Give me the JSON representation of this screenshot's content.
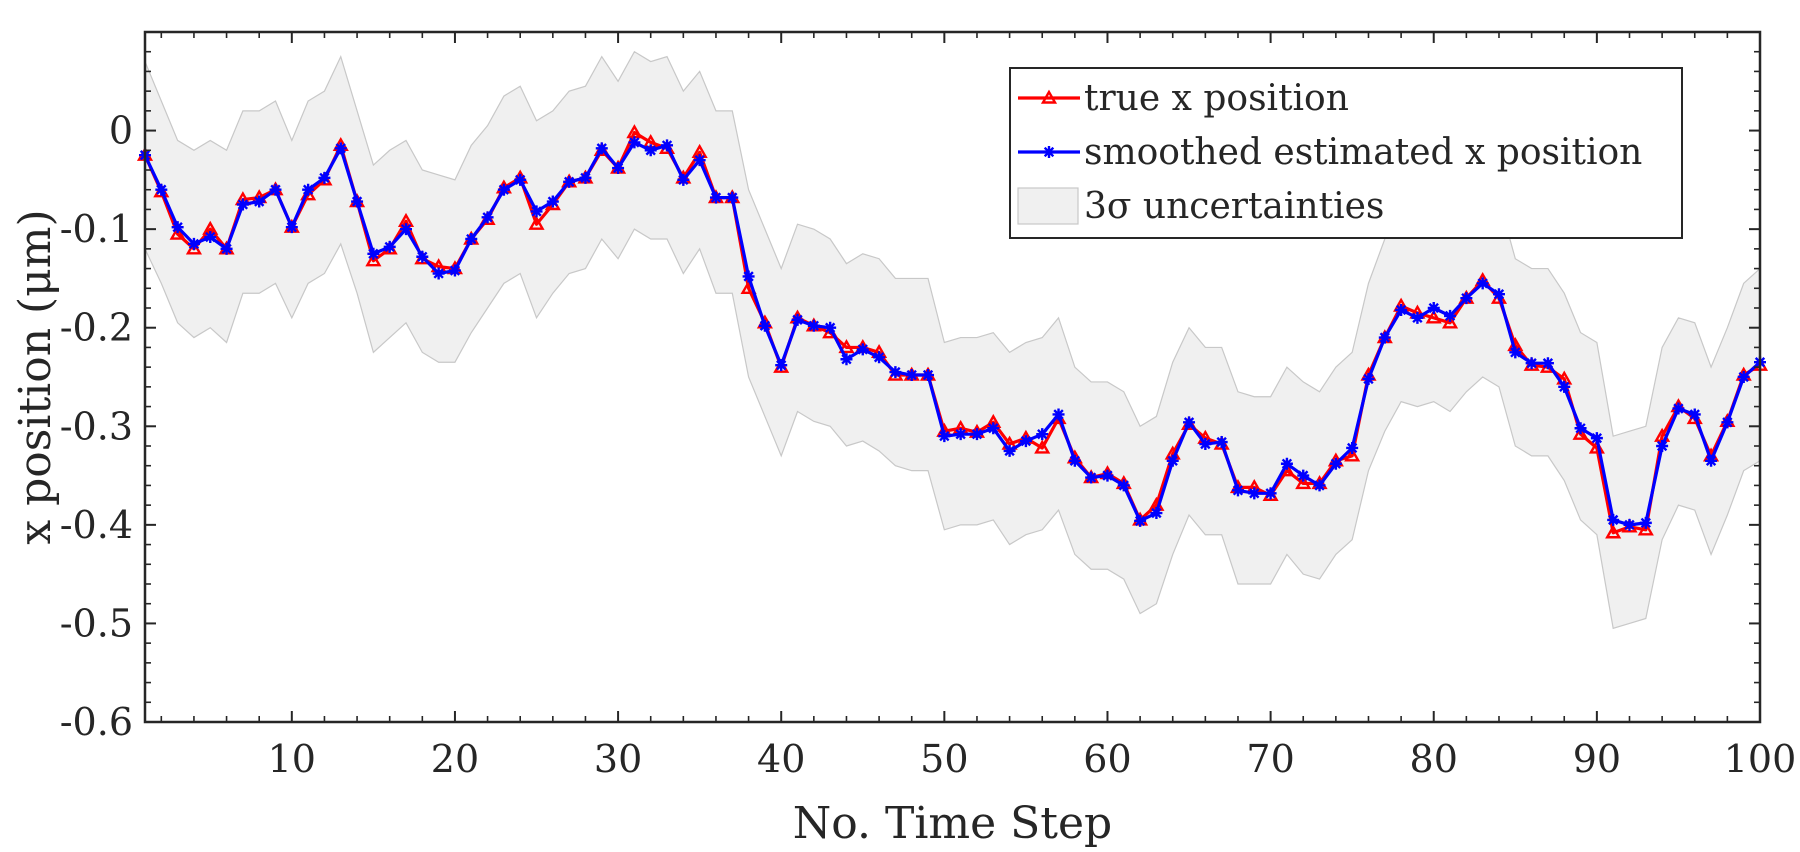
{
  "chart_data": {
    "type": "line",
    "xlabel": "No. Time Step",
    "ylabel": "x position (μm)",
    "xlim": [
      1,
      100
    ],
    "ylim": [
      -0.6,
      0.1
    ],
    "xticks": [
      10,
      20,
      30,
      40,
      50,
      60,
      70,
      80,
      90,
      100
    ],
    "xtick_labels": [
      "10",
      "20",
      "30",
      "40",
      "50",
      "60",
      "70",
      "80",
      "90",
      "100"
    ],
    "yticks": [
      -0.6,
      -0.5,
      -0.4,
      -0.3,
      -0.2,
      -0.1,
      0
    ],
    "ytick_labels": [
      "-0.6",
      "-0.5",
      "-0.4",
      "-0.3",
      "-0.2",
      "-0.1",
      "0"
    ],
    "legend_position": "top-right",
    "legend": [
      "true x position",
      "smoothed estimated x position",
      "3σ uncertainties"
    ],
    "colors": {
      "true": "#ff0000",
      "smoothed": "#0000ff",
      "band_fill": "#f0f0f0",
      "band_edge": "#c8c8c8",
      "axis": "#262626"
    },
    "series": [
      {
        "name": "true x position",
        "marker": "triangle",
        "values": [
          -0.025,
          -0.062,
          -0.105,
          -0.12,
          -0.1,
          -0.12,
          -0.07,
          -0.068,
          -0.06,
          -0.098,
          -0.065,
          -0.05,
          -0.015,
          -0.072,
          -0.132,
          -0.12,
          -0.092,
          -0.13,
          -0.138,
          -0.14,
          -0.11,
          -0.09,
          -0.058,
          -0.048,
          -0.095,
          -0.075,
          -0.052,
          -0.048,
          -0.02,
          -0.038,
          -0.002,
          -0.012,
          -0.018,
          -0.048,
          -0.022,
          -0.068,
          -0.068,
          -0.16,
          -0.195,
          -0.24,
          -0.19,
          -0.198,
          -0.205,
          -0.22,
          -0.22,
          -0.225,
          -0.248,
          -0.248,
          -0.248,
          -0.305,
          -0.302,
          -0.306,
          -0.296,
          -0.318,
          -0.312,
          -0.322,
          -0.292,
          -0.332,
          -0.352,
          -0.348,
          -0.358,
          -0.395,
          -0.38,
          -0.328,
          -0.298,
          -0.312,
          -0.318,
          -0.362,
          -0.362,
          -0.37,
          -0.345,
          -0.358,
          -0.358,
          -0.335,
          -0.33,
          -0.248,
          -0.21,
          -0.178,
          -0.185,
          -0.19,
          -0.195,
          -0.17,
          -0.152,
          -0.17,
          -0.218,
          -0.238,
          -0.24,
          -0.252,
          -0.308,
          -0.322,
          -0.408,
          -0.402,
          -0.405,
          -0.31,
          -0.28,
          -0.292,
          -0.33,
          -0.295,
          -0.248,
          -0.238
        ]
      },
      {
        "name": "smoothed estimated x position",
        "marker": "star",
        "values": [
          -0.025,
          -0.06,
          -0.098,
          -0.115,
          -0.108,
          -0.12,
          -0.075,
          -0.072,
          -0.06,
          -0.098,
          -0.06,
          -0.048,
          -0.018,
          -0.072,
          -0.125,
          -0.118,
          -0.1,
          -0.128,
          -0.145,
          -0.142,
          -0.11,
          -0.088,
          -0.06,
          -0.05,
          -0.082,
          -0.072,
          -0.052,
          -0.048,
          -0.018,
          -0.038,
          -0.012,
          -0.02,
          -0.015,
          -0.05,
          -0.03,
          -0.068,
          -0.068,
          -0.148,
          -0.198,
          -0.238,
          -0.192,
          -0.198,
          -0.2,
          -0.232,
          -0.222,
          -0.23,
          -0.245,
          -0.248,
          -0.248,
          -0.31,
          -0.308,
          -0.308,
          -0.302,
          -0.325,
          -0.315,
          -0.308,
          -0.288,
          -0.335,
          -0.352,
          -0.35,
          -0.36,
          -0.396,
          -0.388,
          -0.335,
          -0.296,
          -0.318,
          -0.316,
          -0.365,
          -0.368,
          -0.368,
          -0.338,
          -0.35,
          -0.36,
          -0.338,
          -0.322,
          -0.252,
          -0.21,
          -0.182,
          -0.19,
          -0.18,
          -0.188,
          -0.17,
          -0.155,
          -0.166,
          -0.225,
          -0.236,
          -0.236,
          -0.26,
          -0.302,
          -0.312,
          -0.395,
          -0.4,
          -0.398,
          -0.32,
          -0.282,
          -0.288,
          -0.335,
          -0.296,
          -0.25,
          -0.235
        ]
      }
    ],
    "band": {
      "name": "3σ uncertainties",
      "upper": [
        0.07,
        0.03,
        -0.01,
        -0.02,
        -0.01,
        -0.02,
        0.02,
        0.02,
        0.03,
        -0.01,
        0.03,
        0.04,
        0.075,
        0.02,
        -0.035,
        -0.02,
        -0.01,
        -0.04,
        -0.045,
        -0.05,
        -0.015,
        0.005,
        0.035,
        0.045,
        0.01,
        0.02,
        0.04,
        0.045,
        0.075,
        0.05,
        0.08,
        0.07,
        0.075,
        0.04,
        0.06,
        0.02,
        0.02,
        -0.06,
        -0.1,
        -0.14,
        -0.095,
        -0.1,
        -0.11,
        -0.135,
        -0.125,
        -0.13,
        -0.15,
        -0.15,
        -0.15,
        -0.215,
        -0.21,
        -0.21,
        -0.205,
        -0.225,
        -0.215,
        -0.21,
        -0.19,
        -0.24,
        -0.255,
        -0.255,
        -0.265,
        -0.3,
        -0.29,
        -0.235,
        -0.2,
        -0.22,
        -0.22,
        -0.265,
        -0.27,
        -0.27,
        -0.24,
        -0.255,
        -0.265,
        -0.24,
        -0.225,
        -0.155,
        -0.11,
        -0.085,
        -0.09,
        -0.085,
        -0.09,
        -0.075,
        -0.06,
        -0.07,
        -0.13,
        -0.14,
        -0.14,
        -0.165,
        -0.205,
        -0.215,
        -0.31,
        -0.305,
        -0.3,
        -0.22,
        -0.19,
        -0.195,
        -0.24,
        -0.2,
        -0.155,
        -0.14
      ],
      "lower": [
        -0.12,
        -0.155,
        -0.195,
        -0.21,
        -0.2,
        -0.215,
        -0.165,
        -0.165,
        -0.155,
        -0.19,
        -0.155,
        -0.145,
        -0.115,
        -0.165,
        -0.225,
        -0.21,
        -0.195,
        -0.225,
        -0.235,
        -0.235,
        -0.205,
        -0.18,
        -0.155,
        -0.145,
        -0.19,
        -0.165,
        -0.145,
        -0.14,
        -0.11,
        -0.13,
        -0.1,
        -0.11,
        -0.11,
        -0.145,
        -0.12,
        -0.165,
        -0.165,
        -0.25,
        -0.29,
        -0.33,
        -0.285,
        -0.295,
        -0.3,
        -0.32,
        -0.315,
        -0.325,
        -0.34,
        -0.345,
        -0.345,
        -0.405,
        -0.4,
        -0.4,
        -0.395,
        -0.42,
        -0.41,
        -0.405,
        -0.385,
        -0.43,
        -0.445,
        -0.445,
        -0.455,
        -0.49,
        -0.48,
        -0.43,
        -0.39,
        -0.41,
        -0.41,
        -0.46,
        -0.46,
        -0.46,
        -0.43,
        -0.45,
        -0.455,
        -0.43,
        -0.415,
        -0.345,
        -0.305,
        -0.275,
        -0.28,
        -0.275,
        -0.285,
        -0.265,
        -0.25,
        -0.26,
        -0.32,
        -0.33,
        -0.33,
        -0.355,
        -0.395,
        -0.41,
        -0.505,
        -0.5,
        -0.495,
        -0.415,
        -0.38,
        -0.385,
        -0.43,
        -0.39,
        -0.345,
        -0.335
      ]
    }
  }
}
